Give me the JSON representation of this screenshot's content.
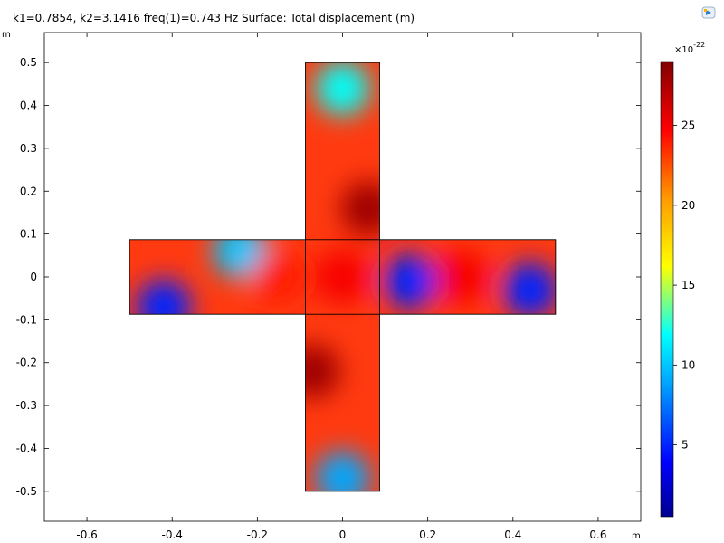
{
  "header": {
    "title": "k1=0.7854, k2=3.1416 freq(1)=0.743 Hz   Surface: Total displacement (m)"
  },
  "icons": {
    "logo": "app-logo-icon"
  },
  "chart_data": {
    "type": "heatmap",
    "title": "k1=0.7854, k2=3.1416 freq(1)=0.743 Hz   Surface: Total displacement (m)",
    "x_unit": "m",
    "y_unit": "m",
    "xlim": [
      -0.7,
      0.7
    ],
    "ylim": [
      -0.57,
      0.57
    ],
    "x_ticks": [
      -0.6,
      -0.4,
      -0.2,
      0,
      0.2,
      0.4,
      0.6
    ],
    "x_tick_labels": [
      "-0.6",
      "-0.4",
      "-0.2",
      "0",
      "0.2",
      "0.4",
      "0.6"
    ],
    "y_ticks": [
      0.5,
      0.4,
      0.3,
      0.2,
      0.1,
      0,
      -0.1,
      -0.2,
      -0.3,
      -0.4,
      -0.5
    ],
    "y_tick_labels": [
      "0.5",
      "0.4",
      "0.3",
      "0.2",
      "0.1",
      "0",
      "-0.1",
      "-0.2",
      "-0.3",
      "-0.4",
      "-0.5"
    ],
    "geometry": {
      "vertical_bar": {
        "x": [
          -0.087,
          0.087
        ],
        "y": [
          -0.5,
          0.5
        ]
      },
      "horizontal_bar": {
        "x": [
          -0.5,
          0.5
        ],
        "y": [
          -0.087,
          0.087
        ]
      }
    },
    "colorbar": {
      "min": 0.5,
      "max": 29,
      "ticks": [
        5,
        10,
        15,
        20,
        25
      ],
      "tick_labels": [
        "5",
        "10",
        "15",
        "20",
        "25"
      ],
      "exponent_label": "×10",
      "exponent": "-22",
      "colormap": "rainbow"
    },
    "field_features": [
      {
        "x": 0.16,
        "y": -0.01,
        "value": 5
      },
      {
        "x": 0.44,
        "y": -0.03,
        "value": 5
      },
      {
        "x": -0.42,
        "y": -0.07,
        "value": 5
      },
      {
        "x": -0.24,
        "y": 0.06,
        "value": 10
      },
      {
        "x": 0.0,
        "y": 0.44,
        "value": 12
      },
      {
        "x": 0.0,
        "y": -0.47,
        "value": 9
      },
      {
        "x": 0.06,
        "y": 0.16,
        "value": 28
      },
      {
        "x": -0.07,
        "y": -0.22,
        "value": 28
      },
      {
        "x": 0.28,
        "y": 0.0,
        "value": 25
      },
      {
        "x": 0.0,
        "y": 0.0,
        "value": 25
      },
      {
        "x": -0.15,
        "y": 0.0,
        "value": 24
      }
    ]
  }
}
